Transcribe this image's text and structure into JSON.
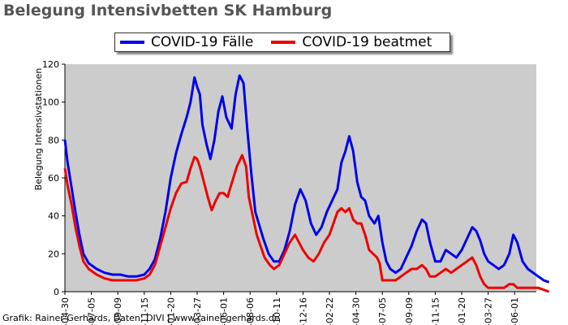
{
  "chart_data": {
    "type": "line",
    "title": "Belegung Intensivbetten SK Hamburg",
    "ylabel": "Belegung Intensivstationen",
    "xlabel": "",
    "ylim": [
      0,
      120
    ],
    "y_ticks": [
      0,
      20,
      40,
      60,
      80,
      100,
      120
    ],
    "x_tick_labels": [
      "-04-30",
      "-07-05",
      "-09-09",
      "-11-15",
      "-01-20",
      "-03-27",
      "-06-01",
      "-08-06",
      "-10-11",
      "-12-16",
      "-02-22",
      "-04-30",
      "-07-05",
      "-09-09",
      "-11-15",
      "-01-20",
      "-03-27",
      "-06-01"
    ],
    "grid": false,
    "plot_background": "#cccccc",
    "legend_position": "top-center",
    "series": [
      {
        "name": "COVID-19 Fälle",
        "color": "#0000ee",
        "points": [
          [
            0,
            80
          ],
          [
            0.1,
            68
          ],
          [
            0.25,
            55
          ],
          [
            0.4,
            42
          ],
          [
            0.55,
            30
          ],
          [
            0.7,
            20
          ],
          [
            0.9,
            15
          ],
          [
            1.2,
            12
          ],
          [
            1.5,
            10
          ],
          [
            1.8,
            9
          ],
          [
            2.1,
            9
          ],
          [
            2.4,
            8
          ],
          [
            2.7,
            8
          ],
          [
            3.0,
            9
          ],
          [
            3.2,
            12
          ],
          [
            3.4,
            17
          ],
          [
            3.6,
            28
          ],
          [
            3.8,
            42
          ],
          [
            4.0,
            60
          ],
          [
            4.2,
            73
          ],
          [
            4.4,
            83
          ],
          [
            4.6,
            92
          ],
          [
            4.75,
            100
          ],
          [
            4.9,
            113
          ],
          [
            5.0,
            108
          ],
          [
            5.1,
            104
          ],
          [
            5.2,
            88
          ],
          [
            5.35,
            78
          ],
          [
            5.5,
            70
          ],
          [
            5.65,
            80
          ],
          [
            5.8,
            95
          ],
          [
            5.95,
            103
          ],
          [
            6.1,
            92
          ],
          [
            6.3,
            86
          ],
          [
            6.45,
            104
          ],
          [
            6.6,
            114
          ],
          [
            6.75,
            110
          ],
          [
            6.9,
            85
          ],
          [
            7.05,
            62
          ],
          [
            7.2,
            42
          ],
          [
            7.35,
            35
          ],
          [
            7.5,
            28
          ],
          [
            7.7,
            20
          ],
          [
            7.9,
            16
          ],
          [
            8.1,
            16
          ],
          [
            8.3,
            22
          ],
          [
            8.5,
            32
          ],
          [
            8.7,
            46
          ],
          [
            8.9,
            54
          ],
          [
            9.1,
            48
          ],
          [
            9.3,
            36
          ],
          [
            9.5,
            30
          ],
          [
            9.7,
            34
          ],
          [
            9.9,
            42
          ],
          [
            10.1,
            48
          ],
          [
            10.3,
            54
          ],
          [
            10.45,
            68
          ],
          [
            10.6,
            74
          ],
          [
            10.75,
            82
          ],
          [
            10.9,
            74
          ],
          [
            11.05,
            58
          ],
          [
            11.2,
            50
          ],
          [
            11.35,
            48
          ],
          [
            11.5,
            40
          ],
          [
            11.7,
            36
          ],
          [
            11.85,
            40
          ],
          [
            12.0,
            26
          ],
          [
            12.15,
            16
          ],
          [
            12.3,
            12
          ],
          [
            12.5,
            10
          ],
          [
            12.7,
            12
          ],
          [
            12.9,
            18
          ],
          [
            13.1,
            24
          ],
          [
            13.3,
            32
          ],
          [
            13.5,
            38
          ],
          [
            13.65,
            36
          ],
          [
            13.8,
            26
          ],
          [
            14.0,
            16
          ],
          [
            14.2,
            16
          ],
          [
            14.4,
            22
          ],
          [
            14.6,
            20
          ],
          [
            14.8,
            18
          ],
          [
            15.0,
            22
          ],
          [
            15.2,
            28
          ],
          [
            15.4,
            34
          ],
          [
            15.55,
            32
          ],
          [
            15.7,
            27
          ],
          [
            15.85,
            20
          ],
          [
            16.0,
            16
          ],
          [
            16.2,
            14
          ],
          [
            16.4,
            12
          ],
          [
            16.6,
            14
          ],
          [
            16.8,
            20
          ],
          [
            16.95,
            30
          ],
          [
            17.1,
            26
          ],
          [
            17.3,
            16
          ],
          [
            17.5,
            12
          ],
          [
            17.7,
            10
          ],
          [
            17.9,
            8
          ],
          [
            18.1,
            6
          ],
          [
            18.3,
            5
          ]
        ]
      },
      {
        "name": "COVID-19 beatmet",
        "color": "#ee0000",
        "points": [
          [
            0,
            65
          ],
          [
            0.1,
            56
          ],
          [
            0.25,
            46
          ],
          [
            0.4,
            34
          ],
          [
            0.55,
            24
          ],
          [
            0.7,
            16
          ],
          [
            0.9,
            12
          ],
          [
            1.2,
            9
          ],
          [
            1.5,
            7
          ],
          [
            1.8,
            6
          ],
          [
            2.1,
            6
          ],
          [
            2.4,
            6
          ],
          [
            2.7,
            6
          ],
          [
            3.0,
            7
          ],
          [
            3.2,
            9
          ],
          [
            3.4,
            14
          ],
          [
            3.6,
            24
          ],
          [
            3.8,
            34
          ],
          [
            4.0,
            44
          ],
          [
            4.2,
            52
          ],
          [
            4.4,
            57
          ],
          [
            4.6,
            58
          ],
          [
            4.75,
            65
          ],
          [
            4.9,
            71
          ],
          [
            5.0,
            70
          ],
          [
            5.1,
            66
          ],
          [
            5.25,
            58
          ],
          [
            5.4,
            50
          ],
          [
            5.55,
            43
          ],
          [
            5.7,
            48
          ],
          [
            5.85,
            52
          ],
          [
            6.0,
            52
          ],
          [
            6.15,
            50
          ],
          [
            6.3,
            57
          ],
          [
            6.5,
            66
          ],
          [
            6.7,
            72
          ],
          [
            6.85,
            66
          ],
          [
            6.95,
            50
          ],
          [
            7.1,
            40
          ],
          [
            7.25,
            30
          ],
          [
            7.4,
            24
          ],
          [
            7.55,
            18
          ],
          [
            7.75,
            14
          ],
          [
            7.9,
            12
          ],
          [
            8.1,
            14
          ],
          [
            8.3,
            20
          ],
          [
            8.5,
            26
          ],
          [
            8.7,
            30
          ],
          [
            8.85,
            26
          ],
          [
            9.0,
            22
          ],
          [
            9.2,
            18
          ],
          [
            9.4,
            16
          ],
          [
            9.6,
            20
          ],
          [
            9.8,
            26
          ],
          [
            10.0,
            30
          ],
          [
            10.15,
            36
          ],
          [
            10.3,
            42
          ],
          [
            10.45,
            44
          ],
          [
            10.6,
            42
          ],
          [
            10.75,
            44
          ],
          [
            10.9,
            38
          ],
          [
            11.05,
            36
          ],
          [
            11.2,
            36
          ],
          [
            11.35,
            30
          ],
          [
            11.5,
            22
          ],
          [
            11.65,
            20
          ],
          [
            11.8,
            18
          ],
          [
            11.9,
            15
          ],
          [
            12.0,
            6
          ],
          [
            12.15,
            6
          ],
          [
            12.3,
            6
          ],
          [
            12.5,
            6
          ],
          [
            12.7,
            8
          ],
          [
            12.9,
            10
          ],
          [
            13.1,
            12
          ],
          [
            13.3,
            12
          ],
          [
            13.5,
            14
          ],
          [
            13.65,
            12
          ],
          [
            13.8,
            8
          ],
          [
            14.0,
            8
          ],
          [
            14.2,
            10
          ],
          [
            14.4,
            12
          ],
          [
            14.6,
            10
          ],
          [
            14.8,
            12
          ],
          [
            15.0,
            14
          ],
          [
            15.2,
            16
          ],
          [
            15.4,
            18
          ],
          [
            15.55,
            14
          ],
          [
            15.7,
            8
          ],
          [
            15.85,
            4
          ],
          [
            16.0,
            2
          ],
          [
            16.2,
            2
          ],
          [
            16.4,
            2
          ],
          [
            16.6,
            2
          ],
          [
            16.8,
            4
          ],
          [
            16.95,
            4
          ],
          [
            17.1,
            2
          ],
          [
            17.3,
            2
          ],
          [
            17.5,
            2
          ],
          [
            17.7,
            2
          ],
          [
            17.9,
            2
          ],
          [
            18.1,
            1
          ],
          [
            18.3,
            0
          ]
        ]
      }
    ]
  },
  "footer": {
    "credit": "Grafik: Rainer Gerhards, Daten: DIVI | www.rainer-gerhards.de"
  }
}
